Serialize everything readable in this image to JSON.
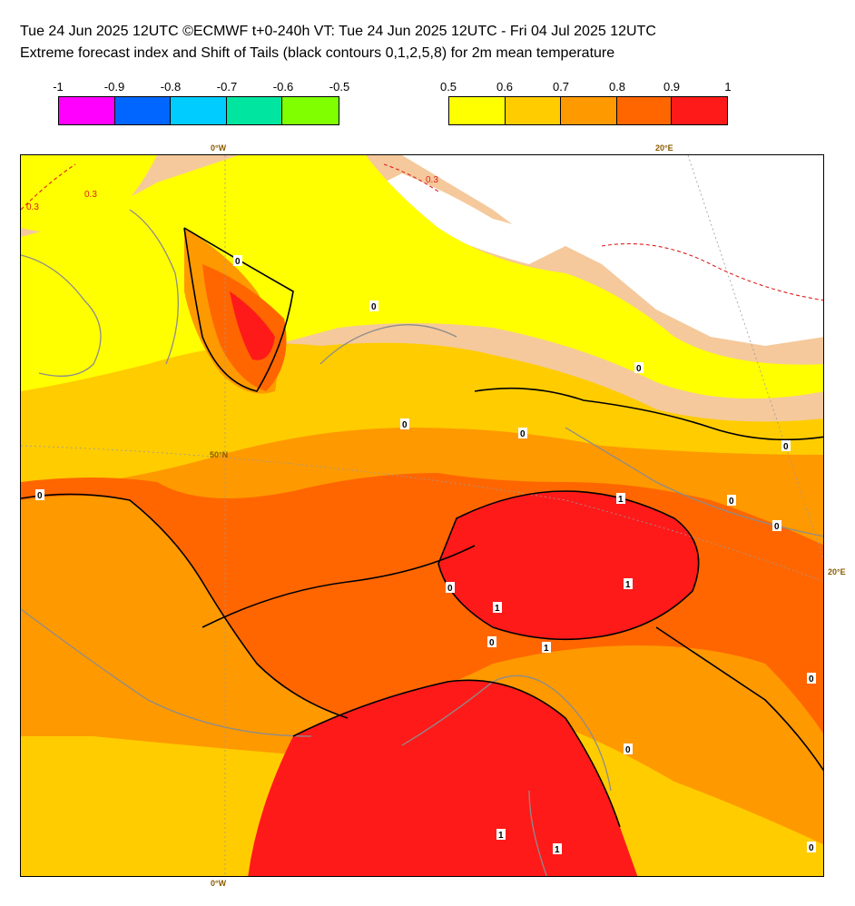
{
  "header": {
    "line1": "Tue 24 Jun 2025 12UTC ©ECMWF t+0-240h  VT: Tue 24 Jun 2025 12UTC - Fri 04 Jul 2025 12UTC",
    "line2": "Extreme forecast index and Shift of Tails (black contours 0,1,2,5,8) for 2m mean temperature"
  },
  "legend_negative": {
    "labels": [
      "-1",
      "-0.9",
      "-0.8",
      "-0.7",
      "-0.6",
      "-0.5"
    ],
    "colors": [
      "#ff00ff",
      "#0066ff",
      "#00ccff",
      "#00e6a0",
      "#80ff00"
    ]
  },
  "legend_positive": {
    "labels": [
      "0.5",
      "0.6",
      "0.7",
      "0.8",
      "0.9",
      "1"
    ],
    "colors": [
      "#ffff00",
      "#ffcc00",
      "#ff9900",
      "#ff6600",
      "#ff1a1a"
    ]
  },
  "map": {
    "lon_label_top_0": "0°W",
    "lon_label_top_20": "20°E",
    "lon_label_bottom_0": "0°W",
    "lon_label_right_20": "20°E",
    "lat_label_50": "50°N",
    "contour_labels": [
      "0",
      "0",
      "0",
      "0",
      "0",
      "0",
      "0",
      "0",
      "0",
      "0",
      "1",
      "1",
      "1",
      "1",
      "1",
      "1",
      "0",
      "0",
      "0",
      "0"
    ],
    "red_dashed_labels": [
      "0.3",
      "0.3",
      "0.3"
    ],
    "colors": {
      "land_beige": "#f5c99b",
      "sea_white": "#ffffff",
      "efi_05": "#ffff00",
      "efi_06": "#ffcc00",
      "efi_07": "#ff9900",
      "efi_08": "#ff6600",
      "efi_09": "#ff1a1a",
      "coast_gray": "#8c8c8c",
      "contour_black": "#000000",
      "sot_red_dashed": "#e01e1e"
    }
  }
}
